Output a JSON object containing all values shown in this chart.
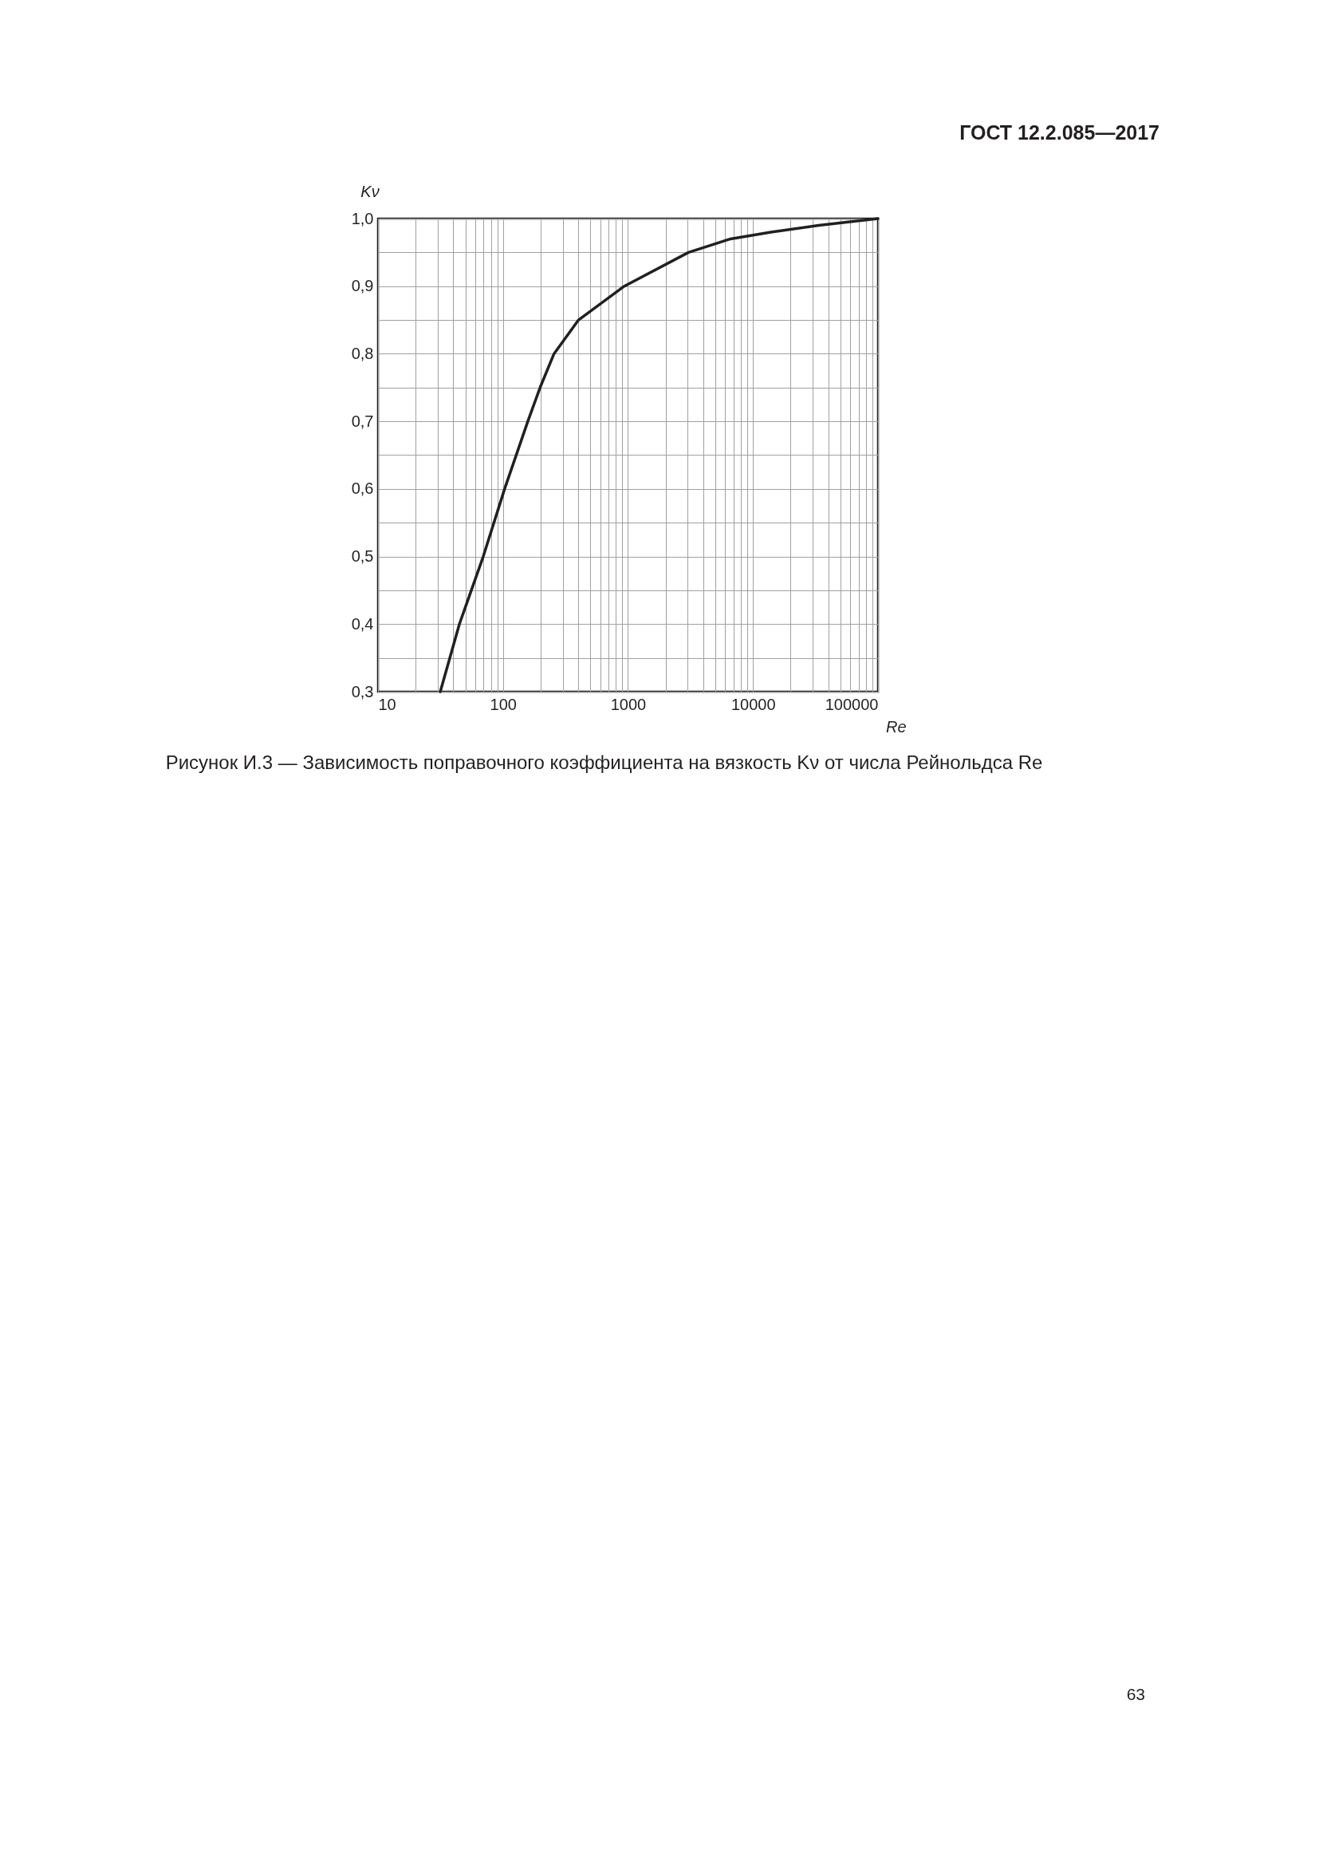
{
  "chart_data": {
    "type": "line",
    "title": "Рисунок И.3 — Зависимость поправочного коэффициента на вязкость Kν от числа Рейнольдса Re",
    "xlabel": "Re",
    "ylabel": "Kν",
    "annotations": [
      "ГОСТ 12.2.085—2017",
      "63"
    ],
    "x": [
      31.5,
      44.8,
      69.5,
      103,
      158,
      198,
      256,
      402,
      935,
      3050,
      6620,
      13900,
      33500,
      100000
    ],
    "series": [
      {
        "color": "#231f20",
        "values": [
          0.3,
          0.4,
          0.5,
          0.6,
          0.7,
          0.75,
          0.8,
          0.85,
          0.9,
          0.95,
          0.97,
          0.98,
          0.99,
          1.0
        ]
      }
    ],
    "log": "x",
    "grid": true,
    "marker": "none",
    "line_style": "solid",
    "xlim": [
      10,
      100000
    ],
    "ylim": [
      0.3,
      1.0
    ],
    "xticks": [
      10,
      {
        "value": 20,
        "label": null
      },
      {
        "value": 30,
        "label": null
      },
      {
        "value": 40,
        "label": null
      },
      {
        "value": 50,
        "label": null
      },
      {
        "value": 60,
        "label": null
      },
      {
        "value": 70,
        "label": null
      },
      {
        "value": 80,
        "label": null
      },
      {
        "value": 90,
        "label": null
      },
      100,
      {
        "value": 200,
        "label": null
      },
      {
        "value": 300,
        "label": null
      },
      {
        "value": 400,
        "label": null
      },
      {
        "value": 500,
        "label": null
      },
      {
        "value": 600,
        "label": null
      },
      {
        "value": 700,
        "label": null
      },
      {
        "value": 800,
        "label": null
      },
      {
        "value": 900,
        "label": null
      },
      1000,
      {
        "value": 2000,
        "label": null
      },
      {
        "value": 3000,
        "label": null
      },
      {
        "value": 4000,
        "label": null
      },
      {
        "value": 5000,
        "label": null
      },
      {
        "value": 6000,
        "label": null
      },
      {
        "value": 7000,
        "label": null
      },
      {
        "value": 8000,
        "label": null
      },
      {
        "value": 9000,
        "label": null
      },
      10000,
      {
        "value": 20000,
        "label": null
      },
      {
        "value": 30000,
        "label": null
      },
      {
        "value": 40000,
        "label": null
      },
      {
        "value": 50000,
        "label": null
      },
      {
        "value": 60000,
        "label": null
      },
      {
        "value": 70000,
        "label": null
      },
      {
        "value": 80000,
        "label": null
      },
      {
        "value": 90000,
        "label": null
      },
      100000
    ],
    "yticks": [
      {
        "value": 0.3,
        "label": "0,3"
      },
      {
        "value": 0.35,
        "label": null
      },
      {
        "value": 0.4,
        "label": "0,4"
      },
      {
        "value": 0.45,
        "label": null
      },
      {
        "value": 0.5,
        "label": "0,5"
      },
      {
        "value": 0.55,
        "label": null
      },
      {
        "value": 0.6,
        "label": "0,6"
      },
      {
        "value": 0.65,
        "label": null
      },
      {
        "value": 0.7,
        "label": "0,7"
      },
      {
        "value": 0.75,
        "label": null
      },
      {
        "value": 0.8,
        "label": "0,8"
      },
      {
        "value": 0.85,
        "label": null
      },
      {
        "value": 0.9,
        "label": "0,9"
      },
      {
        "value": 0.95,
        "label": null
      },
      {
        "value": 1.0,
        "label": "1,0"
      }
    ]
  }
}
